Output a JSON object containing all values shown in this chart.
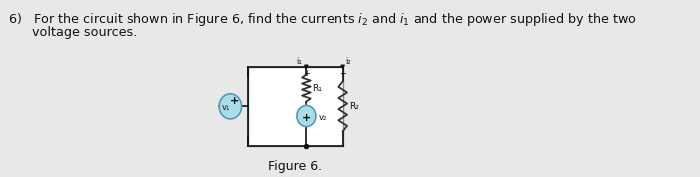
{
  "figure_label": "Figure 6.",
  "bg_color": "#e8e8e8",
  "circuit_bg": "#ffffff",
  "circuit_border": "#888888",
  "source_color": "#aadde8",
  "source_edge": "#5599bb",
  "resistor_color": "#333333",
  "wire_color": "#111111",
  "text_color": "#111111",
  "figsize": [
    7.0,
    1.77
  ],
  "dpi": 100,
  "line1": "6)   For the circuit shown in Figure 6, find the currents $i_2$ and $i_1$ and the power supplied by the two",
  "line2": "      voltage sources."
}
